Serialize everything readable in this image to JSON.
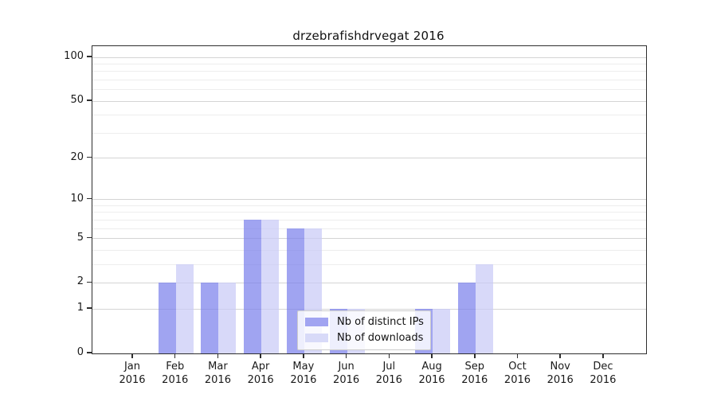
{
  "chart_data": {
    "type": "bar",
    "title": "drzebrafishdrvegat 2016",
    "categories": [
      "Jan",
      "Feb",
      "Mar",
      "Apr",
      "May",
      "Jun",
      "Jul",
      "Aug",
      "Sep",
      "Oct",
      "Nov",
      "Dec"
    ],
    "year_label": "2016",
    "series": [
      {
        "name": "Nb of distinct IPs",
        "swatch_color": "#a1a4f1",
        "fill_color": "rgba(124,129,235,0.72)",
        "values": [
          0,
          2,
          2,
          7,
          6,
          1,
          0,
          1,
          2,
          0,
          0,
          0
        ]
      },
      {
        "name": "Nb of downloads",
        "swatch_color": "#d8daf8",
        "fill_color": "rgba(201,203,246,0.72)",
        "values": [
          0,
          3,
          2,
          7,
          6,
          1,
          0,
          1,
          3,
          0,
          0,
          0
        ]
      }
    ],
    "xlabel": "",
    "ylabel": "",
    "yscale": "symlog",
    "ylim": [
      0,
      120
    ],
    "y_major_ticks": [
      0,
      1,
      2,
      5,
      10,
      20,
      50,
      100
    ],
    "y_minor_gridlines": [
      3,
      4,
      6,
      7,
      8,
      9,
      30,
      40,
      60,
      70,
      80,
      90
    ],
    "grid": true,
    "legend_position": "inside-bottom-center"
  }
}
